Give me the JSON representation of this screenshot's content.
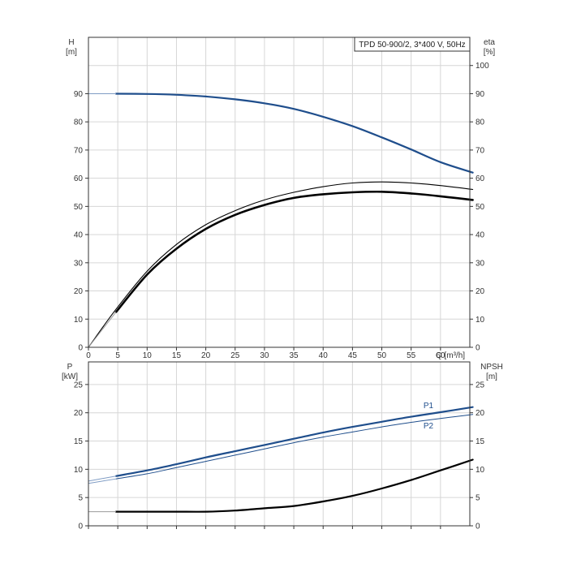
{
  "chart_data": [
    {
      "type": "line",
      "title": "TPD 50-900/2, 3*400 V, 50Hz",
      "y_left_label": [
        "H",
        "[m]"
      ],
      "y_right_label": [
        "eta",
        "[%]"
      ],
      "xlabel": "Q [m³/h]",
      "x_ticks": [
        0,
        5,
        10,
        15,
        20,
        25,
        30,
        35,
        40,
        45,
        50,
        55,
        60
      ],
      "y_left_ticks": [
        0,
        10,
        20,
        30,
        40,
        50,
        60,
        70,
        80,
        90
      ],
      "y_right_ticks": [
        0,
        10,
        20,
        30,
        40,
        50,
        60,
        70,
        80,
        90,
        100
      ],
      "xlim": [
        0,
        65
      ],
      "ylim": [
        0,
        110
      ],
      "grid": true,
      "series": [
        {
          "axis": "left",
          "color": "#1f4e8c",
          "values": [
            [
              4.7,
              90.0
            ],
            [
              10,
              89.9
            ],
            [
              15,
              89.6
            ],
            [
              20,
              89.0
            ],
            [
              25,
              88.0
            ],
            [
              30,
              86.6
            ],
            [
              35,
              84.6
            ],
            [
              40,
              81.8
            ],
            [
              45,
              78.5
            ],
            [
              50,
              74.5
            ],
            [
              55,
              70.2
            ],
            [
              60,
              65.7
            ],
            [
              65.5,
              62.0
            ]
          ]
        },
        {
          "axis": "right",
          "color": "#000000",
          "values": [
            [
              0,
              0
            ],
            [
              4.7,
              13.5
            ],
            [
              10,
              27.0
            ],
            [
              15,
              36.5
            ],
            [
              20,
              43.5
            ],
            [
              25,
              48.5
            ],
            [
              30,
              52.3
            ],
            [
              35,
              55.0
            ],
            [
              40,
              57.0
            ],
            [
              45,
              58.3
            ],
            [
              50,
              58.7
            ],
            [
              55,
              58.3
            ],
            [
              60,
              57.4
            ],
            [
              65.5,
              56.0
            ]
          ]
        },
        {
          "axis": "right",
          "color": "#000000",
          "values": [
            [
              4.7,
              12.5
            ],
            [
              10,
              25.8
            ],
            [
              15,
              35.0
            ],
            [
              20,
              42.0
            ],
            [
              25,
              47.0
            ],
            [
              30,
              50.5
            ],
            [
              35,
              53.0
            ],
            [
              40,
              54.3
            ],
            [
              45,
              55.0
            ],
            [
              50,
              55.2
            ],
            [
              55,
              54.6
            ],
            [
              60,
              53.6
            ],
            [
              65.5,
              52.3
            ]
          ]
        }
      ]
    },
    {
      "type": "line",
      "y_left_label": [
        "P",
        "[kW]"
      ],
      "y_right_label": [
        "NPSH",
        "[m]"
      ],
      "x_ticks": [
        0,
        5,
        10,
        15,
        20,
        25,
        30,
        35,
        40,
        45,
        50,
        55,
        60
      ],
      "y_left_ticks": [
        0,
        5,
        10,
        15,
        20,
        25
      ],
      "y_right_ticks": [
        0,
        5,
        10,
        15,
        20,
        25
      ],
      "xlim": [
        0,
        65
      ],
      "ylim": [
        0,
        29
      ],
      "grid": true,
      "series": [
        {
          "name": "P1",
          "axis": "left",
          "color": "#1f4e8c",
          "values": [
            [
              4.7,
              8.8
            ],
            [
              10,
              9.8
            ],
            [
              15,
              10.9
            ],
            [
              20,
              12.1
            ],
            [
              25,
              13.2
            ],
            [
              30,
              14.3
            ],
            [
              35,
              15.4
            ],
            [
              40,
              16.5
            ],
            [
              45,
              17.5
            ],
            [
              50,
              18.4
            ],
            [
              55,
              19.3
            ],
            [
              60,
              20.1
            ],
            [
              65.5,
              21.0
            ]
          ]
        },
        {
          "name": "P2",
          "axis": "left",
          "color": "#1f4e8c",
          "values": [
            [
              4.7,
              8.3
            ],
            [
              10,
              9.2
            ],
            [
              15,
              10.3
            ],
            [
              20,
              11.4
            ],
            [
              25,
              12.5
            ],
            [
              30,
              13.6
            ],
            [
              35,
              14.7
            ],
            [
              40,
              15.7
            ],
            [
              45,
              16.6
            ],
            [
              50,
              17.5
            ],
            [
              55,
              18.3
            ],
            [
              60,
              19.0
            ],
            [
              65.5,
              19.7
            ]
          ]
        },
        {
          "axis": "right",
          "color": "#000000",
          "values": [
            [
              4.7,
              2.5
            ],
            [
              10,
              2.5
            ],
            [
              15,
              2.5
            ],
            [
              20,
              2.5
            ],
            [
              25,
              2.7
            ],
            [
              30,
              3.1
            ],
            [
              35,
              3.5
            ],
            [
              40,
              4.3
            ],
            [
              45,
              5.3
            ],
            [
              50,
              6.6
            ],
            [
              55,
              8.1
            ],
            [
              60,
              9.8
            ],
            [
              65.5,
              11.7
            ]
          ]
        }
      ]
    }
  ]
}
